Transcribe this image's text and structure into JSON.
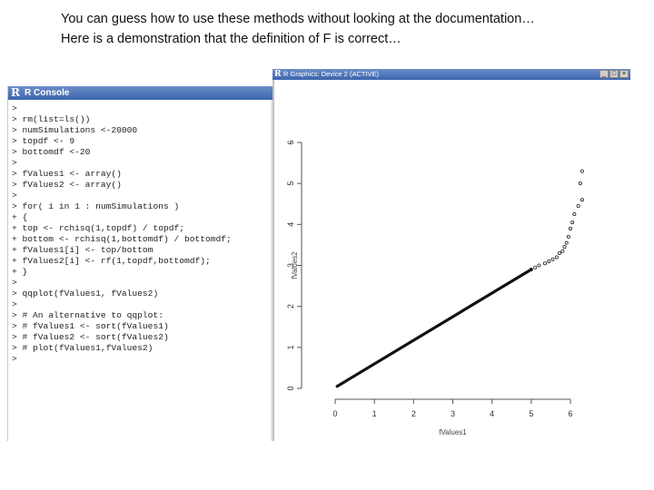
{
  "caption": {
    "line1": "You can guess how to use these methods without looking at the documentation…",
    "line2": "Here is a demonstration that the definition of F is correct…"
  },
  "console": {
    "title": "R Console",
    "logo_icon": "r-logo-icon",
    "lines": [
      ">",
      "> rm(list=ls())",
      "> numSimulations <-20000",
      "> topdf <- 9",
      "> bottomdf <-20",
      ">",
      "> fValues1 <- array()",
      "> fValues2 <- array()",
      ">",
      "> for( i in 1 : numSimulations )",
      "+ {",
      "+ top <- rchisq(1,topdf) / topdf;",
      "+ bottom <- rchisq(1,bottomdf) / bottomdf;",
      "+ fValues1[i] <- top/bottom",
      "+ fValues2[i] <- rf(1,topdf,bottomdf);",
      "+ }",
      ">",
      "> qqplot(fValues1, fValues2)",
      ">",
      "> # An alternative to qqplot:",
      "> # fValues1 <- sort(fValues1)",
      "> # fValues2 <- sort(fValues2)",
      "> # plot(fValues1,fValues2)",
      ">"
    ]
  },
  "graphics_window": {
    "title": "R Graphics: Device 2 (ACTIVE)",
    "logo_icon": "r-logo-icon",
    "buttons": [
      "_",
      "□",
      "×"
    ]
  },
  "chart_data": {
    "type": "scatter",
    "title": "",
    "xlabel": "fValues1",
    "ylabel": "fValues2",
    "xlim": [
      0,
      6.3
    ],
    "ylim": [
      0,
      6.2
    ],
    "x_ticks": [
      0,
      1,
      2,
      3,
      4,
      5,
      6
    ],
    "y_ticks": [
      0,
      1,
      2,
      3,
      4,
      5,
      6
    ],
    "y_tick_labels": [
      "0",
      "1",
      "2",
      "3",
      "4",
      "5",
      "6"
    ],
    "grid": false,
    "dense_segment": {
      "from": [
        0.05,
        0.05
      ],
      "to": [
        5.0,
        2.9
      ]
    },
    "points": [
      [
        5.0,
        2.9
      ],
      [
        5.1,
        2.95
      ],
      [
        5.2,
        3.0
      ],
      [
        5.35,
        3.05
      ],
      [
        5.45,
        3.1
      ],
      [
        5.55,
        3.15
      ],
      [
        5.65,
        3.2
      ],
      [
        5.72,
        3.3
      ],
      [
        5.8,
        3.35
      ],
      [
        5.85,
        3.45
      ],
      [
        5.9,
        3.55
      ],
      [
        5.95,
        3.7
      ],
      [
        6.0,
        3.9
      ],
      [
        6.05,
        4.05
      ],
      [
        6.1,
        4.25
      ],
      [
        6.2,
        4.45
      ],
      [
        6.3,
        4.6
      ],
      [
        6.25,
        5.0
      ],
      [
        6.3,
        5.3
      ]
    ]
  }
}
